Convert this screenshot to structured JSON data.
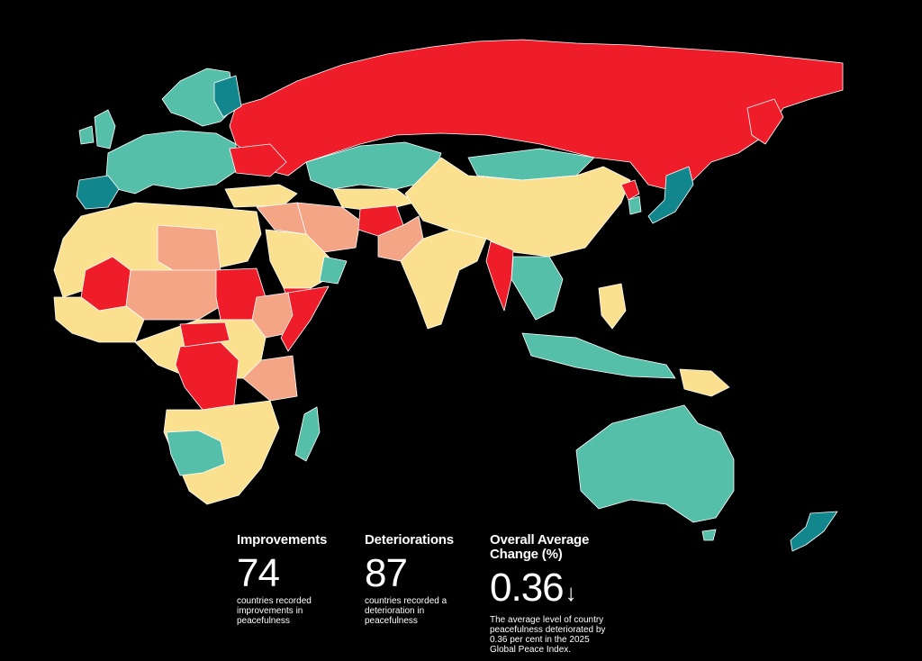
{
  "colors": {
    "background": "#000000",
    "strong_deterioration": "#EE1D29",
    "deterioration": "#F4A586",
    "slight_change": "#FBE08F",
    "improvement": "#55BFAA",
    "strong_improvement": "#12868D",
    "border": "#FFFFFF"
  },
  "stats": [
    {
      "title": "Improvements",
      "value": "74",
      "description": "countries recorded improvements in peacefulness"
    },
    {
      "title": "Deteriorations",
      "value": "87",
      "description": "countries recorded a deterioration in peacefulness"
    },
    {
      "title": "Overall Average Change (%)",
      "value": "0.36",
      "arrow": "↓",
      "arrow_icon": "down-arrow-icon",
      "description": "The average level of country peacefulness deteriorated by 0.36 per cent in the 2025 Global Peace Index."
    }
  ]
}
